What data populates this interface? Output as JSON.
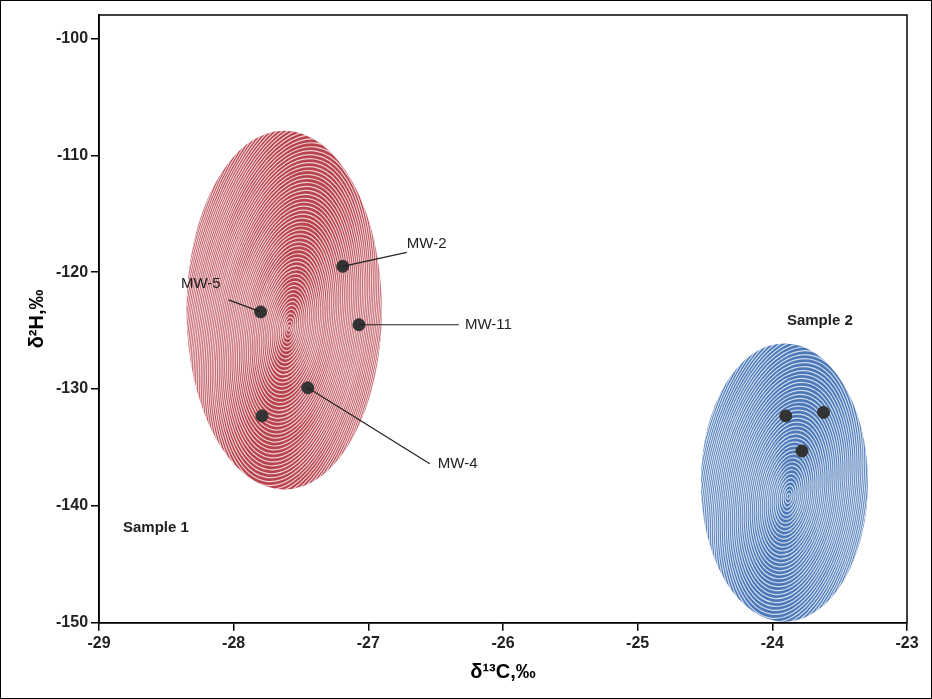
{
  "chart_data": {
    "type": "scatter",
    "x_label": "δ¹³C,‰",
    "y_label": "δ²H,‰",
    "xlim": [
      -29,
      -23
    ],
    "xticks": [
      -29,
      -28,
      -27,
      -26,
      -25,
      -24,
      -23
    ],
    "ylim": [
      -150,
      -98
    ],
    "yticks": [
      -150,
      -140,
      -130,
      -120,
      -110,
      -100
    ],
    "grid": false,
    "series": [
      {
        "name": "Sample 1",
        "color": "#b8434d",
        "marker": "circle",
        "x": [
          -27.19,
          -27.8,
          -27.07,
          -27.45,
          -27.79
        ],
        "values": [
          -119.5,
          -123.4,
          -124.5,
          -129.9,
          -132.3
        ],
        "point_labels": [
          "MW-2",
          "MW-5",
          "MW-11",
          "MW-4",
          null
        ],
        "region": {
          "x": [
            -28.35,
            -26.9
          ],
          "y": [
            -138.6,
            -107.9
          ]
        },
        "name_at": [
          -28.8,
          -141.9
        ]
      },
      {
        "name": "Sample 2",
        "color": "#4a78b8",
        "marker": "circle",
        "x": [
          -23.9,
          -23.62,
          -23.78
        ],
        "values": [
          -132.3,
          -132.0,
          -135.3
        ],
        "point_labels": [
          null,
          null,
          null
        ],
        "region": {
          "x": [
            -24.53,
            -23.29
          ],
          "y": [
            -149.9,
            -126.1
          ]
        },
        "name_at": [
          -23.87,
          -124.2
        ]
      }
    ]
  }
}
